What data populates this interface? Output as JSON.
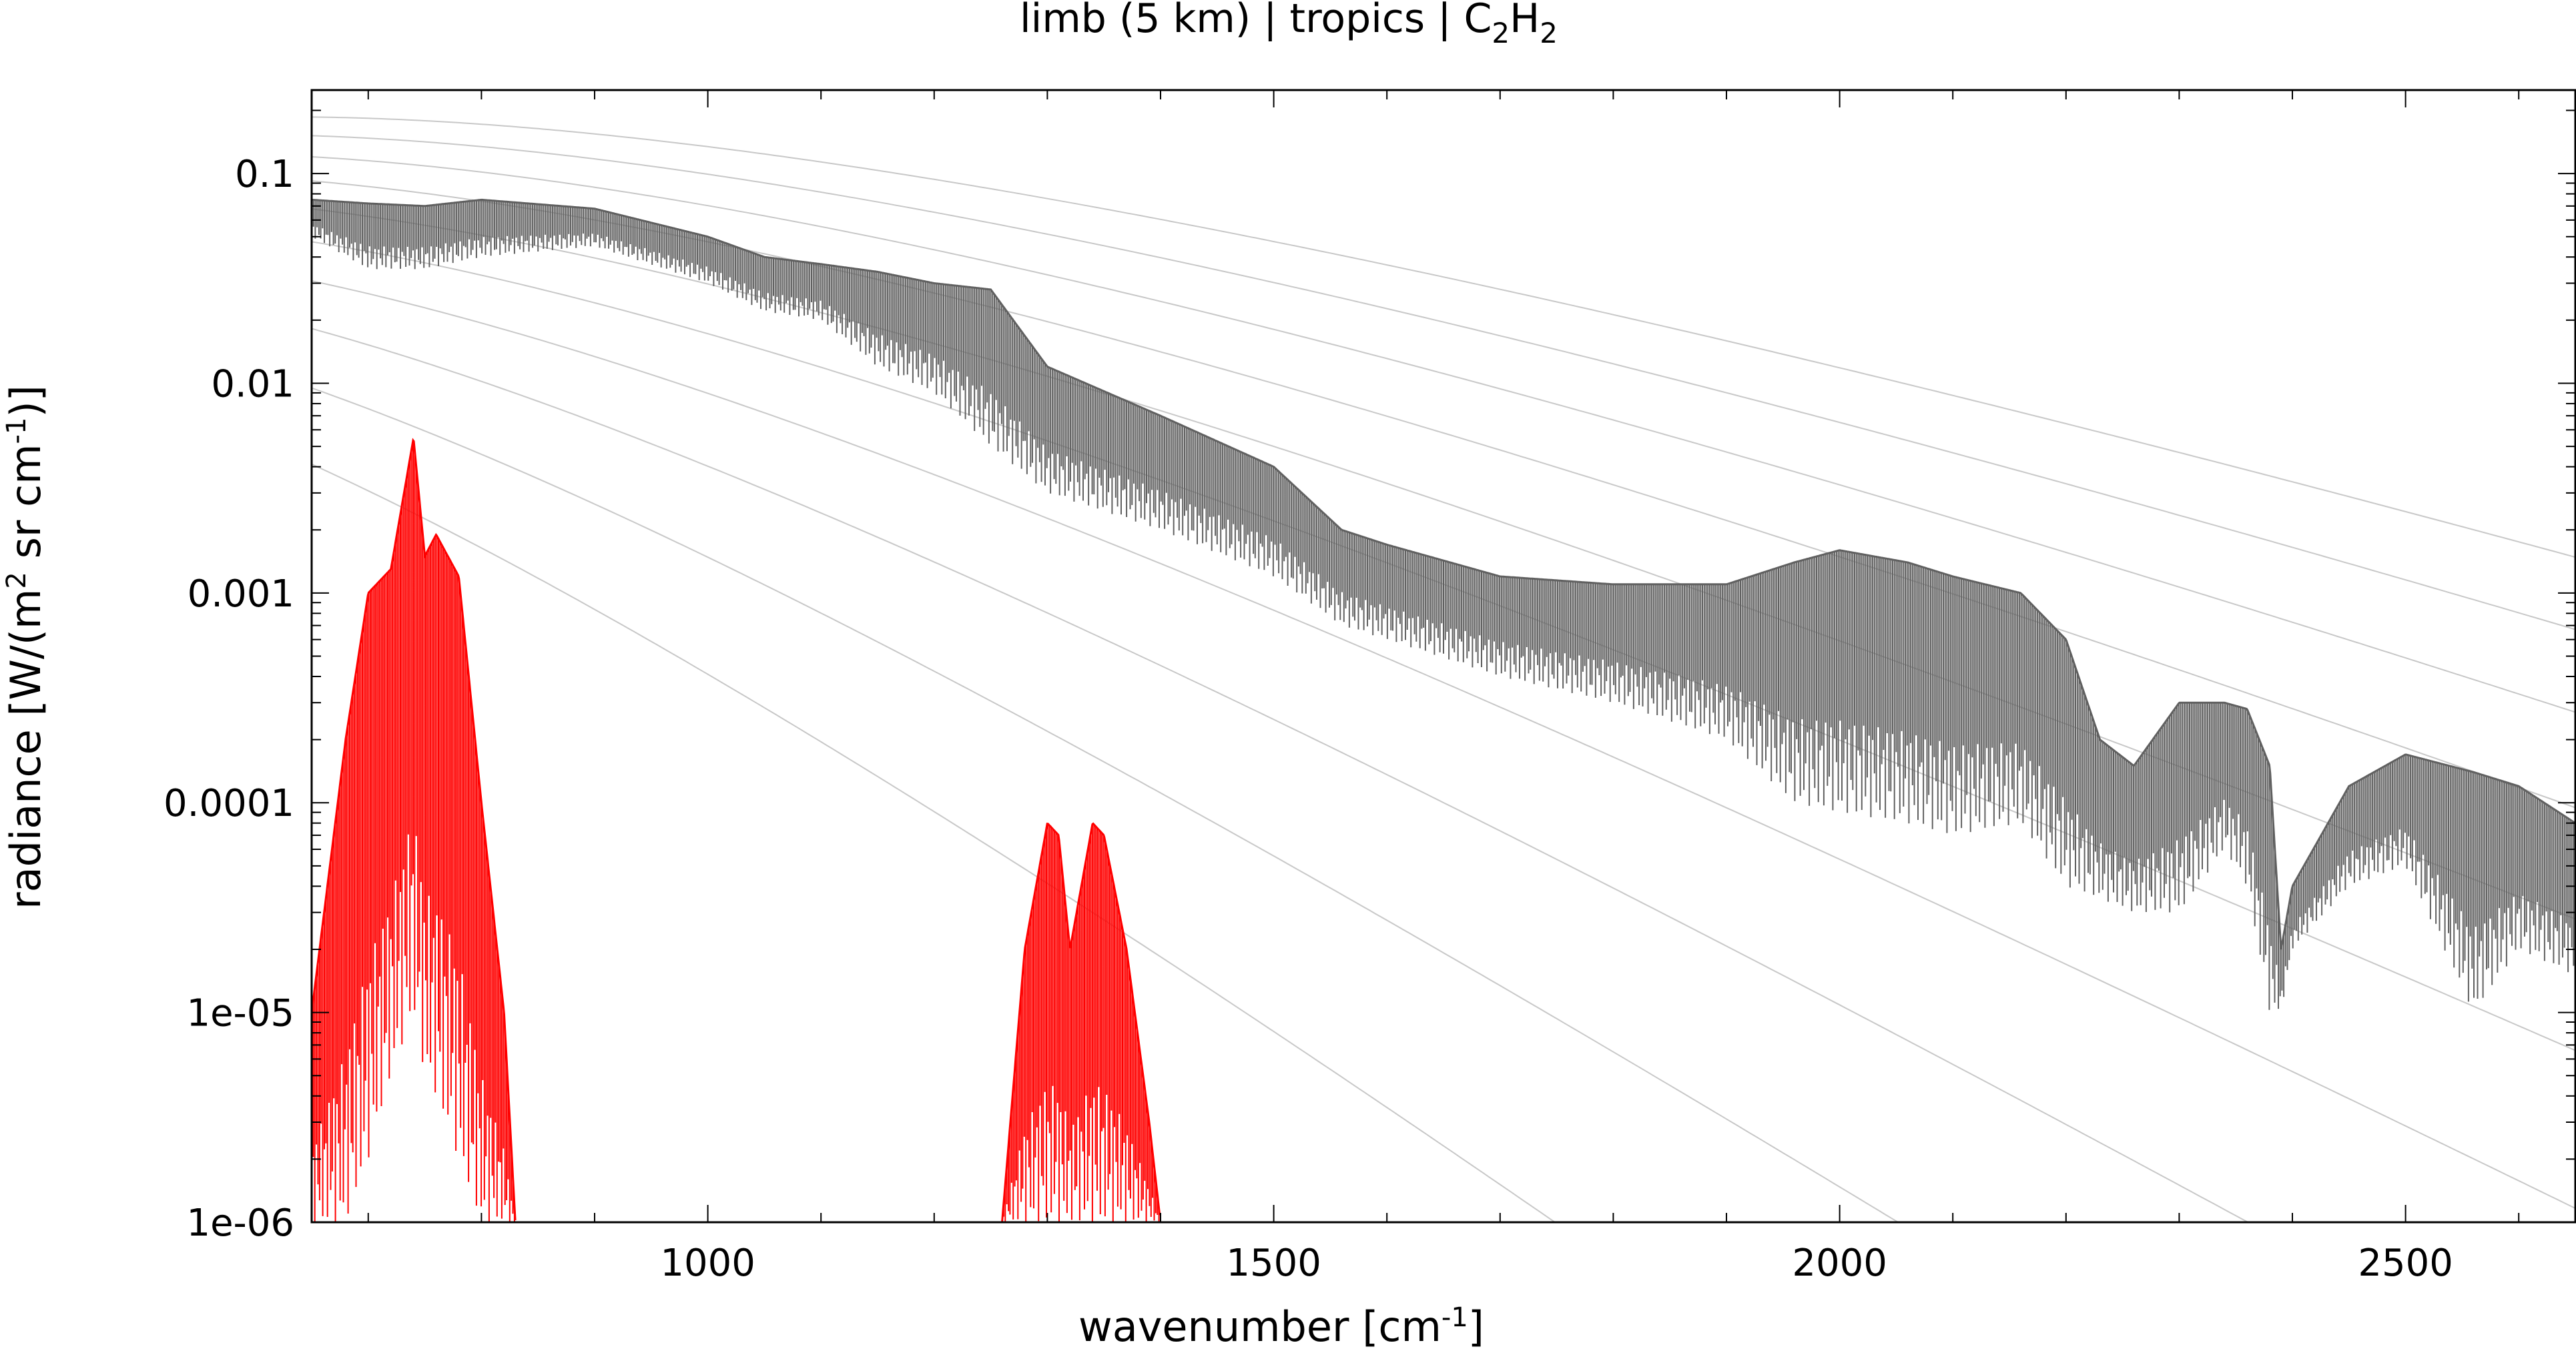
{
  "chart_data": {
    "type": "line",
    "title": {
      "prefix": "limb (5 km) | tropics | C",
      "sub1": "2",
      "mid": "H",
      "sub2": "2"
    },
    "xlabel": {
      "text": "wavenumber [cm",
      "sup": "-1",
      "end": "]"
    },
    "ylabel": {
      "text": "radiance [W/(m",
      "sup1": "2",
      "mid": " sr cm",
      "sup2": "-1",
      "end": ")]"
    },
    "xlim": [
      650,
      2650
    ],
    "ylim": [
      1e-06,
      0.25
    ],
    "yscale": "log",
    "x_ticks": [
      1000,
      1500,
      2000,
      2500
    ],
    "x_tick_labels": [
      "1000",
      "1500",
      "2000",
      "2500"
    ],
    "y_ticks": [
      0.1,
      0.01,
      0.001,
      0.0001,
      1e-05,
      1e-06
    ],
    "y_tick_labels": [
      "0.1",
      "0.01",
      "0.001",
      "0.0001",
      "1e-05",
      "1e-06"
    ],
    "grid": false,
    "reference_curves": {
      "kind": "planck",
      "temperatures_K": [
        320,
        300,
        280,
        260,
        240,
        220,
        200,
        180,
        160,
        140
      ]
    },
    "series": [
      {
        "color": "#606060",
        "envelope_x": [
          650,
          700,
          750,
          800,
          900,
          1000,
          1050,
          1100,
          1150,
          1200,
          1250,
          1300,
          1400,
          1500,
          1560,
          1600,
          1700,
          1800,
          1900,
          1960,
          2000,
          2060,
          2100,
          2160,
          2200,
          2230,
          2260,
          2300,
          2340,
          2360,
          2380,
          2390,
          2400,
          2450,
          2500,
          2560,
          2600,
          2650
        ],
        "envelope_top": [
          0.075,
          0.072,
          0.07,
          0.075,
          0.068,
          0.05,
          0.04,
          0.037,
          0.034,
          0.03,
          0.028,
          0.012,
          0.007,
          0.004,
          0.002,
          0.0017,
          0.0012,
          0.0011,
          0.0011,
          0.0014,
          0.0016,
          0.0014,
          0.0012,
          0.001,
          0.0006,
          0.0002,
          0.00015,
          0.0003,
          0.0003,
          0.00028,
          0.00015,
          2e-05,
          4e-05,
          0.00012,
          0.00017,
          0.00014,
          0.00012,
          8e-05
        ],
        "envelope_bottom": [
          0.05,
          0.035,
          0.035,
          0.04,
          0.045,
          0.03,
          0.022,
          0.02,
          0.012,
          0.009,
          0.005,
          0.003,
          0.002,
          0.0012,
          0.0007,
          0.0006,
          0.0004,
          0.0003,
          0.0002,
          0.0001,
          9e-05,
          8e-05,
          7e-05,
          8e-05,
          4e-05,
          3.5e-05,
          3e-05,
          3e-05,
          6e-05,
          4e-05,
          1e-05,
          1e-05,
          2e-05,
          4e-05,
          5e-05,
          1e-05,
          2e-05,
          1.5e-05
        ]
      },
      {
        "color": "#ff0000",
        "bands": [
          {
            "envelope_x": [
              650,
              680,
              700,
              720,
              740,
              750,
              760,
              780,
              800,
              820,
              830
            ],
            "envelope_top": [
              1e-05,
              0.0002,
              0.001,
              0.0013,
              0.0055,
              0.0015,
              0.0019,
              0.0012,
              0.0001,
              1e-05,
              1e-06
            ],
            "envelope_bottom": [
              1e-06,
              1e-06,
              2e-06,
              5e-06,
              1e-05,
              5e-06,
              4e-06,
              2e-06,
              1e-06,
              1e-06,
              1e-06
            ]
          },
          {
            "envelope_x": [
              1260,
              1280,
              1300,
              1310,
              1320,
              1340,
              1350,
              1370,
              1390,
              1400
            ],
            "envelope_top": [
              1e-06,
              2e-05,
              8e-05,
              7e-05,
              2e-05,
              8e-05,
              7e-05,
              2e-05,
              3e-06,
              1e-06
            ],
            "envelope_bottom": [
              1e-06,
              1e-06,
              1e-06,
              1e-06,
              1e-06,
              1e-06,
              1e-06,
              1e-06,
              1e-06,
              1e-06
            ]
          }
        ]
      }
    ]
  }
}
